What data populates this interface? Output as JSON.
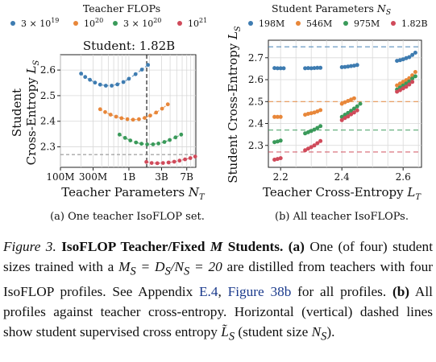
{
  "chart_data": [
    {
      "type": "scatter",
      "panel": "a",
      "title": "Student: 1.82B",
      "legend_title": "Teacher FLOPs",
      "legend_placement": "top",
      "xscale": "log",
      "xlabel": "Teacher Parameters N_T",
      "ylabel": "Student Cross-Entropy L_S",
      "x_ticks": [
        {
          "value": 100000000,
          "label": "100M"
        },
        {
          "value": 300000000,
          "label": "300M"
        },
        {
          "value": 1000000000,
          "label": "1B"
        },
        {
          "value": 3000000000,
          "label": "3B"
        },
        {
          "value": 7000000000,
          "label": "7B"
        }
      ],
      "y_ticks": [
        2.3,
        2.4,
        2.5,
        2.6
      ],
      "xlim": [
        100000000,
        9500000000
      ],
      "ylim": [
        2.22,
        2.66
      ],
      "grid": true,
      "vertical_reference": 1820000000,
      "horizontal_reference": 2.27,
      "series": [
        {
          "name": "3×10^19",
          "color": "#3e7cb1",
          "points": [
            [
              200000000,
              2.586
            ],
            [
              230000000,
              2.573
            ],
            [
              270000000,
              2.562
            ],
            [
              320000000,
              2.551
            ],
            [
              380000000,
              2.543
            ],
            [
              460000000,
              2.539
            ],
            [
              560000000,
              2.539
            ],
            [
              680000000,
              2.544
            ],
            [
              830000000,
              2.553
            ],
            [
              1000000000,
              2.566
            ],
            [
              1250000000,
              2.584
            ],
            [
              1550000000,
              2.602
            ],
            [
              1900000000,
              2.62
            ]
          ]
        },
        {
          "name": "10^20",
          "color": "#e8873a",
          "points": [
            [
              380000000,
              2.447
            ],
            [
              450000000,
              2.436
            ],
            [
              540000000,
              2.426
            ],
            [
              650000000,
              2.418
            ],
            [
              780000000,
              2.412
            ],
            [
              950000000,
              2.408
            ],
            [
              1150000000,
              2.406
            ],
            [
              1400000000,
              2.408
            ],
            [
              1700000000,
              2.413
            ],
            [
              2050000000,
              2.422
            ],
            [
              2500000000,
              2.434
            ],
            [
              3050000000,
              2.449
            ],
            [
              3700000000,
              2.466
            ]
          ]
        },
        {
          "name": "3×10^20",
          "color": "#3a9a5a",
          "points": [
            [
              730000000,
              2.348
            ],
            [
              880000000,
              2.335
            ],
            [
              1050000000,
              2.325
            ],
            [
              1270000000,
              2.317
            ],
            [
              1530000000,
              2.312
            ],
            [
              1850000000,
              2.31
            ],
            [
              2250000000,
              2.31
            ],
            [
              2700000000,
              2.313
            ],
            [
              3300000000,
              2.319
            ],
            [
              3950000000,
              2.327
            ],
            [
              4800000000,
              2.337
            ],
            [
              5800000000,
              2.348
            ]
          ]
        },
        {
          "name": "10^21",
          "color": "#d04a5a",
          "points": [
            [
              1800000000,
              2.241
            ],
            [
              2150000000,
              2.237
            ],
            [
              2600000000,
              2.236
            ],
            [
              3150000000,
              2.237
            ],
            [
              3800000000,
              2.239
            ],
            [
              4600000000,
              2.242
            ],
            [
              5500000000,
              2.246
            ],
            [
              6600000000,
              2.251
            ],
            [
              7900000000,
              2.256
            ],
            [
              9300000000,
              2.262
            ]
          ]
        }
      ]
    },
    {
      "type": "scatter",
      "panel": "b",
      "legend_title": "Student Parameters N_S",
      "legend_placement": "top",
      "xlabel": "Teacher Cross-Entropy L_T",
      "ylabel": "Student Cross-Entropy L_S",
      "x_ticks": [
        2.2,
        2.4,
        2.6
      ],
      "y_ticks": [
        2.3,
        2.4,
        2.5,
        2.6,
        2.7
      ],
      "xlim": [
        2.16,
        2.66
      ],
      "ylim": [
        2.2,
        2.78
      ],
      "grid": true,
      "horizontal_references": [
        2.75,
        2.5,
        2.37,
        2.27
      ],
      "series": [
        {
          "name": "198M",
          "color": "#3e7cb1",
          "points": [
            [
              2.18,
              2.653
            ],
            [
              2.19,
              2.652
            ],
            [
              2.2,
              2.652
            ],
            [
              2.21,
              2.652
            ],
            [
              2.28,
              2.652
            ],
            [
              2.29,
              2.653
            ],
            [
              2.3,
              2.652
            ],
            [
              2.31,
              2.653
            ],
            [
              2.32,
              2.654
            ],
            [
              2.33,
              2.654
            ],
            [
              2.4,
              2.657
            ],
            [
              2.41,
              2.658
            ],
            [
              2.42,
              2.66
            ],
            [
              2.43,
              2.662
            ],
            [
              2.44,
              2.664
            ],
            [
              2.45,
              2.667
            ],
            [
              2.58,
              2.686
            ],
            [
              2.59,
              2.689
            ],
            [
              2.6,
              2.693
            ],
            [
              2.61,
              2.698
            ],
            [
              2.62,
              2.703
            ],
            [
              2.63,
              2.713
            ],
            [
              2.64,
              2.723
            ]
          ]
        },
        {
          "name": "546M",
          "color": "#e8873a",
          "points": [
            [
              2.18,
              2.43
            ],
            [
              2.19,
              2.43
            ],
            [
              2.2,
              2.43
            ],
            [
              2.28,
              2.44
            ],
            [
              2.29,
              2.444
            ],
            [
              2.3,
              2.447
            ],
            [
              2.31,
              2.45
            ],
            [
              2.32,
              2.455
            ],
            [
              2.33,
              2.461
            ],
            [
              2.4,
              2.49
            ],
            [
              2.41,
              2.497
            ],
            [
              2.42,
              2.503
            ],
            [
              2.43,
              2.509
            ],
            [
              2.44,
              2.515
            ],
            [
              2.58,
              2.574
            ],
            [
              2.59,
              2.582
            ],
            [
              2.6,
              2.59
            ],
            [
              2.61,
              2.598
            ],
            [
              2.62,
              2.607
            ],
            [
              2.63,
              2.62
            ],
            [
              2.64,
              2.635
            ]
          ]
        },
        {
          "name": "975M",
          "color": "#3a9a5a",
          "points": [
            [
              2.18,
              2.315
            ],
            [
              2.19,
              2.318
            ],
            [
              2.2,
              2.322
            ],
            [
              2.28,
              2.355
            ],
            [
              2.29,
              2.36
            ],
            [
              2.3,
              2.366
            ],
            [
              2.31,
              2.372
            ],
            [
              2.32,
              2.38
            ],
            [
              2.33,
              2.388
            ],
            [
              2.4,
              2.43
            ],
            [
              2.41,
              2.44
            ],
            [
              2.42,
              2.448
            ],
            [
              2.43,
              2.458
            ],
            [
              2.44,
              2.468
            ],
            [
              2.45,
              2.478
            ],
            [
              2.46,
              2.49
            ],
            [
              2.58,
              2.555
            ],
            [
              2.59,
              2.565
            ],
            [
              2.6,
              2.573
            ],
            [
              2.61,
              2.582
            ],
            [
              2.62,
              2.592
            ],
            [
              2.63,
              2.605
            ],
            [
              2.64,
              2.615
            ]
          ]
        },
        {
          "name": "1.82B",
          "color": "#d04a5a",
          "points": [
            [
              2.18,
              2.235
            ],
            [
              2.19,
              2.238
            ],
            [
              2.2,
              2.242
            ],
            [
              2.28,
              2.278
            ],
            [
              2.29,
              2.285
            ],
            [
              2.3,
              2.292
            ],
            [
              2.31,
              2.3
            ],
            [
              2.32,
              2.31
            ],
            [
              2.33,
              2.32
            ],
            [
              2.4,
              2.415
            ],
            [
              2.41,
              2.425
            ],
            [
              2.42,
              2.432
            ],
            [
              2.43,
              2.442
            ],
            [
              2.44,
              2.45
            ],
            [
              2.45,
              2.46
            ],
            [
              2.58,
              2.545
            ],
            [
              2.59,
              2.552
            ],
            [
              2.6,
              2.56
            ],
            [
              2.61,
              2.568
            ],
            [
              2.62,
              2.578
            ],
            [
              2.63,
              2.59
            ]
          ]
        }
      ]
    }
  ],
  "subcaptions": {
    "a": "(a) One teacher IsoFLOP set.",
    "b": "(b) All teacher IsoFLOPs."
  },
  "caption": {
    "figure_label": "Figure 3.",
    "title": "IsoFLOP Teacher/Fixed",
    "title_var": "M",
    "title_end": "Students.",
    "part_a_label": "(a)",
    "part_a_text_1": "One (of four) student sizes trained with a",
    "equation": "M_S = D_S/N_S = 20",
    "part_a_text_2": "are distilled from teachers with four IsoFLOP profiles. See Appendix",
    "appendix_ref": "E.4",
    "figure_ref": "Figure 38b",
    "part_a_text_3": "for all profiles.",
    "part_b_label": "(b)",
    "part_b_text_1": "All profiles against teacher cross-entropy. Horizontal (vertical) dashed lines show student supervised cross entropy",
    "part_b_text_2": "(student size",
    "part_b_text_3": ")."
  }
}
